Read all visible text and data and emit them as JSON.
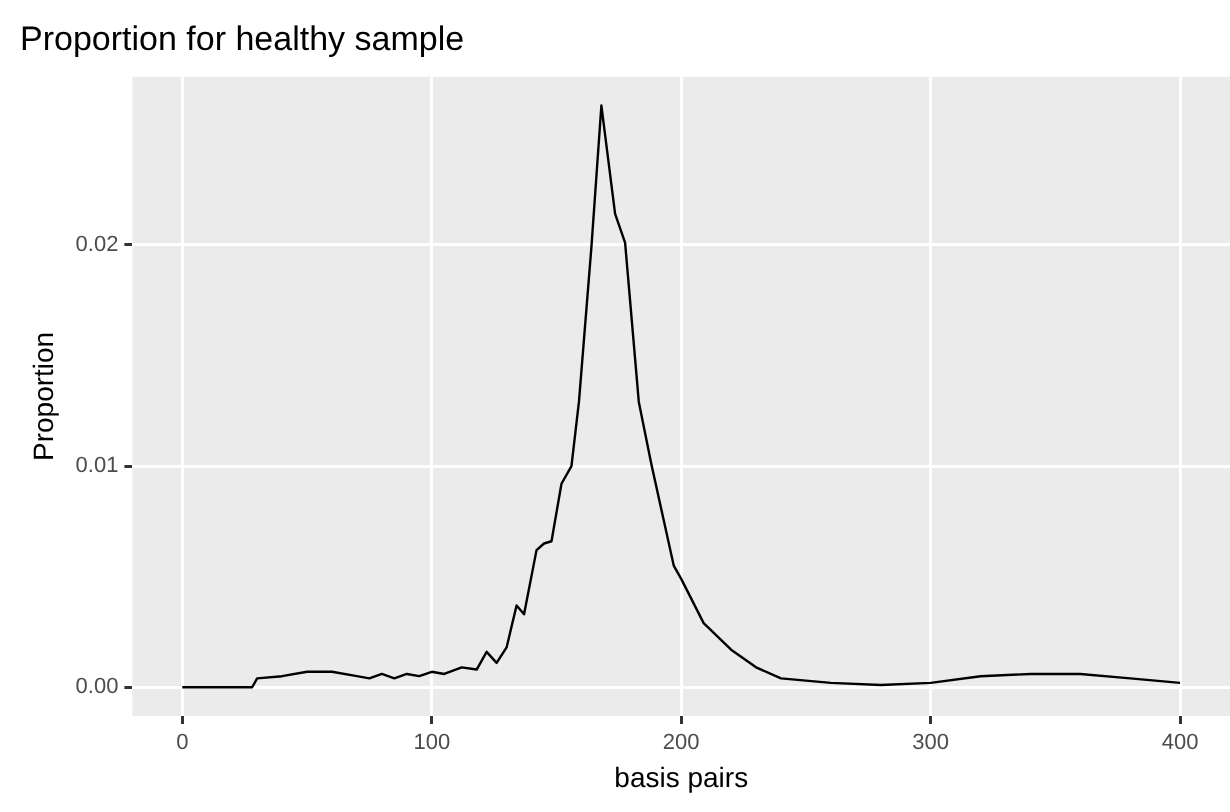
{
  "chart_data": {
    "type": "line",
    "title": "Proportion for healthy sample",
    "xlabel": "basis pairs",
    "ylabel": "Proportion",
    "x": [
      0,
      28,
      30,
      40,
      50,
      60,
      70,
      75,
      80,
      85,
      90,
      95,
      100,
      105,
      112,
      118,
      122,
      126,
      130,
      134,
      137,
      142,
      145,
      148,
      152,
      156,
      159,
      164,
      168,
      173.5,
      177.5,
      183,
      188,
      197,
      200,
      209,
      220,
      230,
      240,
      260,
      280,
      300,
      320,
      340,
      360,
      380,
      400
    ],
    "series": [
      {
        "color": "#000000",
        "values": [
          0,
          0,
          0.0004,
          0.0005,
          0.0007,
          0.0007,
          0.0005,
          0.0004,
          0.0006,
          0.0004,
          0.0006,
          0.0005,
          0.0007,
          0.0006,
          0.0009,
          0.0008,
          0.0016,
          0.0011,
          0.0018,
          0.0037,
          0.0033,
          0.0062,
          0.0065,
          0.0066,
          0.0092,
          0.01,
          0.0129,
          0.0199,
          0.0263,
          0.0214,
          0.0201,
          0.0129,
          0.0101,
          0.0055,
          0.0049,
          0.0029,
          0.0017,
          0.0009,
          0.0004,
          0.0002,
          0.0001,
          0.0002,
          0.0005,
          0.0006,
          0.0006,
          0.0004,
          0.0002
        ]
      }
    ],
    "xlim": [
      -20,
      420
    ],
    "xticks": [
      0,
      100,
      200,
      300,
      400
    ],
    "ylim": [
      -0.0013,
      0.0276
    ],
    "yticks": [
      {
        "value": 0,
        "label": "0.00"
      },
      {
        "value": 0.01,
        "label": "0.01"
      },
      {
        "value": 0.02,
        "label": "0.02"
      }
    ],
    "grid": true,
    "legend": false,
    "marker": "none",
    "line_style": "solid"
  }
}
